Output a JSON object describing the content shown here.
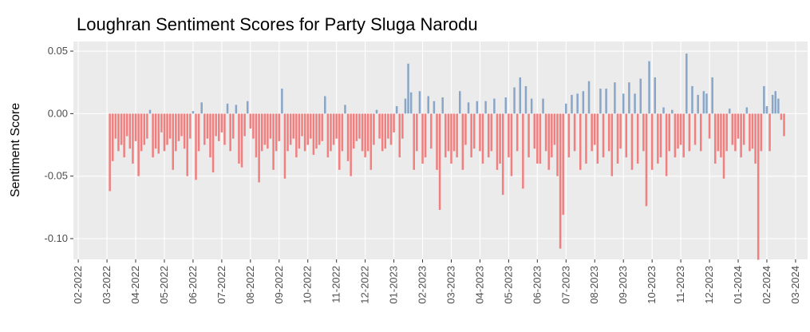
{
  "chart_data": {
    "type": "bar",
    "title": "Loughran Sentiment Scores for Party Sluga Narodu",
    "y_label": "Sentiment Score",
    "negative_color": "#f08080",
    "positive_color": "#8aa6c7",
    "grid": true,
    "xlim": [
      0.83,
      26.42
    ],
    "xticks": [
      {
        "value": 1,
        "label": "02-2022"
      },
      {
        "value": 2,
        "label": "03-2022"
      },
      {
        "value": 3,
        "label": "04-2022"
      },
      {
        "value": 4,
        "label": "05-2022"
      },
      {
        "value": 5,
        "label": "06-2022"
      },
      {
        "value": 6,
        "label": "07-2022"
      },
      {
        "value": 7,
        "label": "08-2022"
      },
      {
        "value": 8,
        "label": "09-2022"
      },
      {
        "value": 9,
        "label": "10-2022"
      },
      {
        "value": 10,
        "label": "11-2022"
      },
      {
        "value": 11,
        "label": "12-2022"
      },
      {
        "value": 12,
        "label": "01-2023"
      },
      {
        "value": 13,
        "label": "02-2023"
      },
      {
        "value": 14,
        "label": "03-2023"
      },
      {
        "value": 15,
        "label": "04-2023"
      },
      {
        "value": 16,
        "label": "05-2023"
      },
      {
        "value": 17,
        "label": "06-2023"
      },
      {
        "value": 18,
        "label": "07-2023"
      },
      {
        "value": 19,
        "label": "08-2023"
      },
      {
        "value": 20,
        "label": "09-2023"
      },
      {
        "value": 21,
        "label": "10-2023"
      },
      {
        "value": 22,
        "label": "11-2023"
      },
      {
        "value": 23,
        "label": "12-2023"
      },
      {
        "value": 24,
        "label": "01-2024"
      },
      {
        "value": 25,
        "label": "02-2024"
      },
      {
        "value": 26,
        "label": "03-2024"
      }
    ],
    "ylim": [
      -0.1166,
      0.0577
    ],
    "yticks": [
      {
        "value": -0.1,
        "label": "-0.10"
      },
      {
        "value": -0.05,
        "label": "-0.05"
      },
      {
        "value": 0,
        "label": "0.00"
      },
      {
        "value": 0.05,
        "label": "0.05"
      }
    ],
    "x": [
      2.1,
      2.2,
      2.3,
      2.4,
      2.5,
      2.6,
      2.7,
      2.8,
      2.9,
      3,
      3.1,
      3.2,
      3.3,
      3.4,
      3.5,
      3.6,
      3.7,
      3.8,
      3.9,
      4,
      4.1,
      4.2,
      4.3,
      4.4,
      4.5,
      4.6,
      4.7,
      4.8,
      4.9,
      5,
      5.1,
      5.2,
      5.3,
      5.4,
      5.5,
      5.6,
      5.7,
      5.8,
      5.9,
      6,
      6.1,
      6.2,
      6.3,
      6.4,
      6.5,
      6.6,
      6.7,
      6.8,
      6.9,
      7,
      7.1,
      7.2,
      7.3,
      7.4,
      7.5,
      7.6,
      7.7,
      7.8,
      7.9,
      8,
      8.1,
      8.2,
      8.3,
      8.4,
      8.5,
      8.6,
      8.7,
      8.8,
      8.9,
      9,
      9.1,
      9.2,
      9.3,
      9.4,
      9.5,
      9.6,
      9.7,
      9.8,
      9.9,
      10,
      10.1,
      10.2,
      10.3,
      10.4,
      10.5,
      10.6,
      10.7,
      10.8,
      10.9,
      11,
      11.1,
      11.2,
      11.3,
      11.4,
      11.5,
      11.6,
      11.7,
      11.8,
      11.9,
      12,
      12.1,
      12.2,
      12.3,
      12.4,
      12.5,
      12.6,
      12.7,
      12.8,
      12.9,
      13,
      13.1,
      13.2,
      13.3,
      13.4,
      13.5,
      13.6,
      13.7,
      13.8,
      13.9,
      14,
      14.1,
      14.2,
      14.3,
      14.4,
      14.5,
      14.6,
      14.7,
      14.8,
      14.9,
      15,
      15.1,
      15.2,
      15.3,
      15.4,
      15.5,
      15.6,
      15.7,
      15.8,
      15.9,
      16,
      16.1,
      16.2,
      16.3,
      16.4,
      16.5,
      16.6,
      16.7,
      16.8,
      16.9,
      17,
      17.1,
      17.2,
      17.3,
      17.4,
      17.5,
      17.6,
      17.7,
      17.8,
      17.9,
      18,
      18.1,
      18.2,
      18.3,
      18.4,
      18.5,
      18.6,
      18.7,
      18.8,
      18.9,
      19,
      19.1,
      19.2,
      19.3,
      19.4,
      19.5,
      19.6,
      19.7,
      19.8,
      19.9,
      20,
      20.1,
      20.2,
      20.3,
      20.4,
      20.5,
      20.6,
      20.7,
      20.8,
      20.9,
      21,
      21.1,
      21.2,
      21.3,
      21.4,
      21.5,
      21.6,
      21.7,
      21.8,
      21.9,
      22,
      22.1,
      22.2,
      22.3,
      22.4,
      22.5,
      22.6,
      22.7,
      22.8,
      22.9,
      23,
      23.1,
      23.2,
      23.3,
      23.4,
      23.5,
      23.6,
      23.7,
      23.8,
      23.9,
      24,
      24.1,
      24.2,
      24.3,
      24.4,
      24.5,
      24.6,
      24.7,
      24.8,
      24.9,
      25,
      25.1,
      25.2,
      25.3,
      25.4,
      25.5,
      25.6
    ],
    "values": [
      -0.062,
      -0.038,
      -0.02,
      -0.03,
      -0.025,
      -0.035,
      -0.018,
      -0.028,
      -0.04,
      -0.022,
      -0.05,
      -0.03,
      -0.025,
      -0.02,
      0.003,
      -0.035,
      -0.028,
      -0.032,
      -0.015,
      -0.03,
      -0.025,
      -0.02,
      -0.045,
      -0.03,
      -0.022,
      -0.018,
      -0.028,
      -0.05,
      -0.02,
      0.002,
      -0.053,
      -0.03,
      0.009,
      -0.025,
      -0.02,
      -0.035,
      -0.047,
      -0.018,
      -0.022,
      -0.015,
      -0.025,
      0.008,
      -0.03,
      -0.02,
      0.007,
      -0.04,
      -0.043,
      -0.018,
      0.01,
      -0.012,
      -0.02,
      -0.035,
      -0.055,
      -0.03,
      -0.025,
      -0.028,
      -0.02,
      -0.045,
      -0.03,
      -0.022,
      0.02,
      -0.052,
      -0.03,
      -0.025,
      -0.02,
      -0.035,
      -0.028,
      -0.018,
      -0.03,
      -0.025,
      -0.02,
      -0.033,
      -0.028,
      -0.025,
      -0.022,
      0.014,
      -0.035,
      -0.03,
      -0.025,
      -0.02,
      -0.045,
      -0.03,
      0.007,
      -0.038,
      -0.05,
      -0.028,
      -0.022,
      -0.02,
      -0.03,
      -0.035,
      -0.03,
      -0.045,
      -0.025,
      0.003,
      -0.02,
      -0.03,
      -0.028,
      -0.02,
      -0.025,
      -0.015,
      0.006,
      -0.035,
      -0.02,
      0.012,
      0.04,
      0.017,
      -0.045,
      -0.03,
      0.018,
      -0.04,
      -0.035,
      0.014,
      -0.028,
      0.01,
      -0.045,
      -0.077,
      0.013,
      -0.035,
      -0.03,
      -0.04,
      -0.03,
      -0.035,
      0.018,
      -0.045,
      -0.025,
      0.009,
      -0.035,
      -0.028,
      0.01,
      -0.03,
      -0.04,
      0.01,
      -0.035,
      -0.03,
      0.012,
      -0.045,
      -0.04,
      -0.065,
      0.013,
      -0.035,
      -0.05,
      0.021,
      -0.03,
      0.029,
      -0.06,
      0.022,
      -0.035,
      0.012,
      -0.028,
      -0.04,
      -0.04,
      0.012,
      -0.03,
      -0.045,
      -0.035,
      -0.025,
      -0.05,
      -0.108,
      -0.081,
      0.008,
      -0.035,
      0.015,
      -0.03,
      0.016,
      -0.045,
      0.018,
      -0.04,
      0.026,
      -0.03,
      -0.025,
      -0.04,
      0.02,
      -0.035,
      0.02,
      -0.03,
      -0.05,
      0.025,
      -0.04,
      -0.028,
      0.016,
      -0.035,
      0.025,
      -0.045,
      0.016,
      -0.04,
      0.028,
      -0.03,
      -0.074,
      0.042,
      -0.045,
      0.029,
      -0.04,
      -0.035,
      0.005,
      -0.05,
      -0.03,
      0.003,
      -0.035,
      -0.028,
      -0.025,
      -0.035,
      0.048,
      -0.03,
      0.022,
      -0.025,
      0.015,
      -0.03,
      0.018,
      0.016,
      -0.02,
      0.029,
      -0.04,
      -0.03,
      -0.035,
      -0.052,
      -0.03,
      0.004,
      -0.025,
      -0.03,
      -0.02,
      -0.035,
      -0.025,
      0.005,
      -0.03,
      -0.028,
      -0.04,
      -0.117,
      -0.03,
      0.022,
      0.006,
      -0.03,
      0.015,
      0.018,
      0.012,
      -0.005,
      -0.018
    ]
  }
}
